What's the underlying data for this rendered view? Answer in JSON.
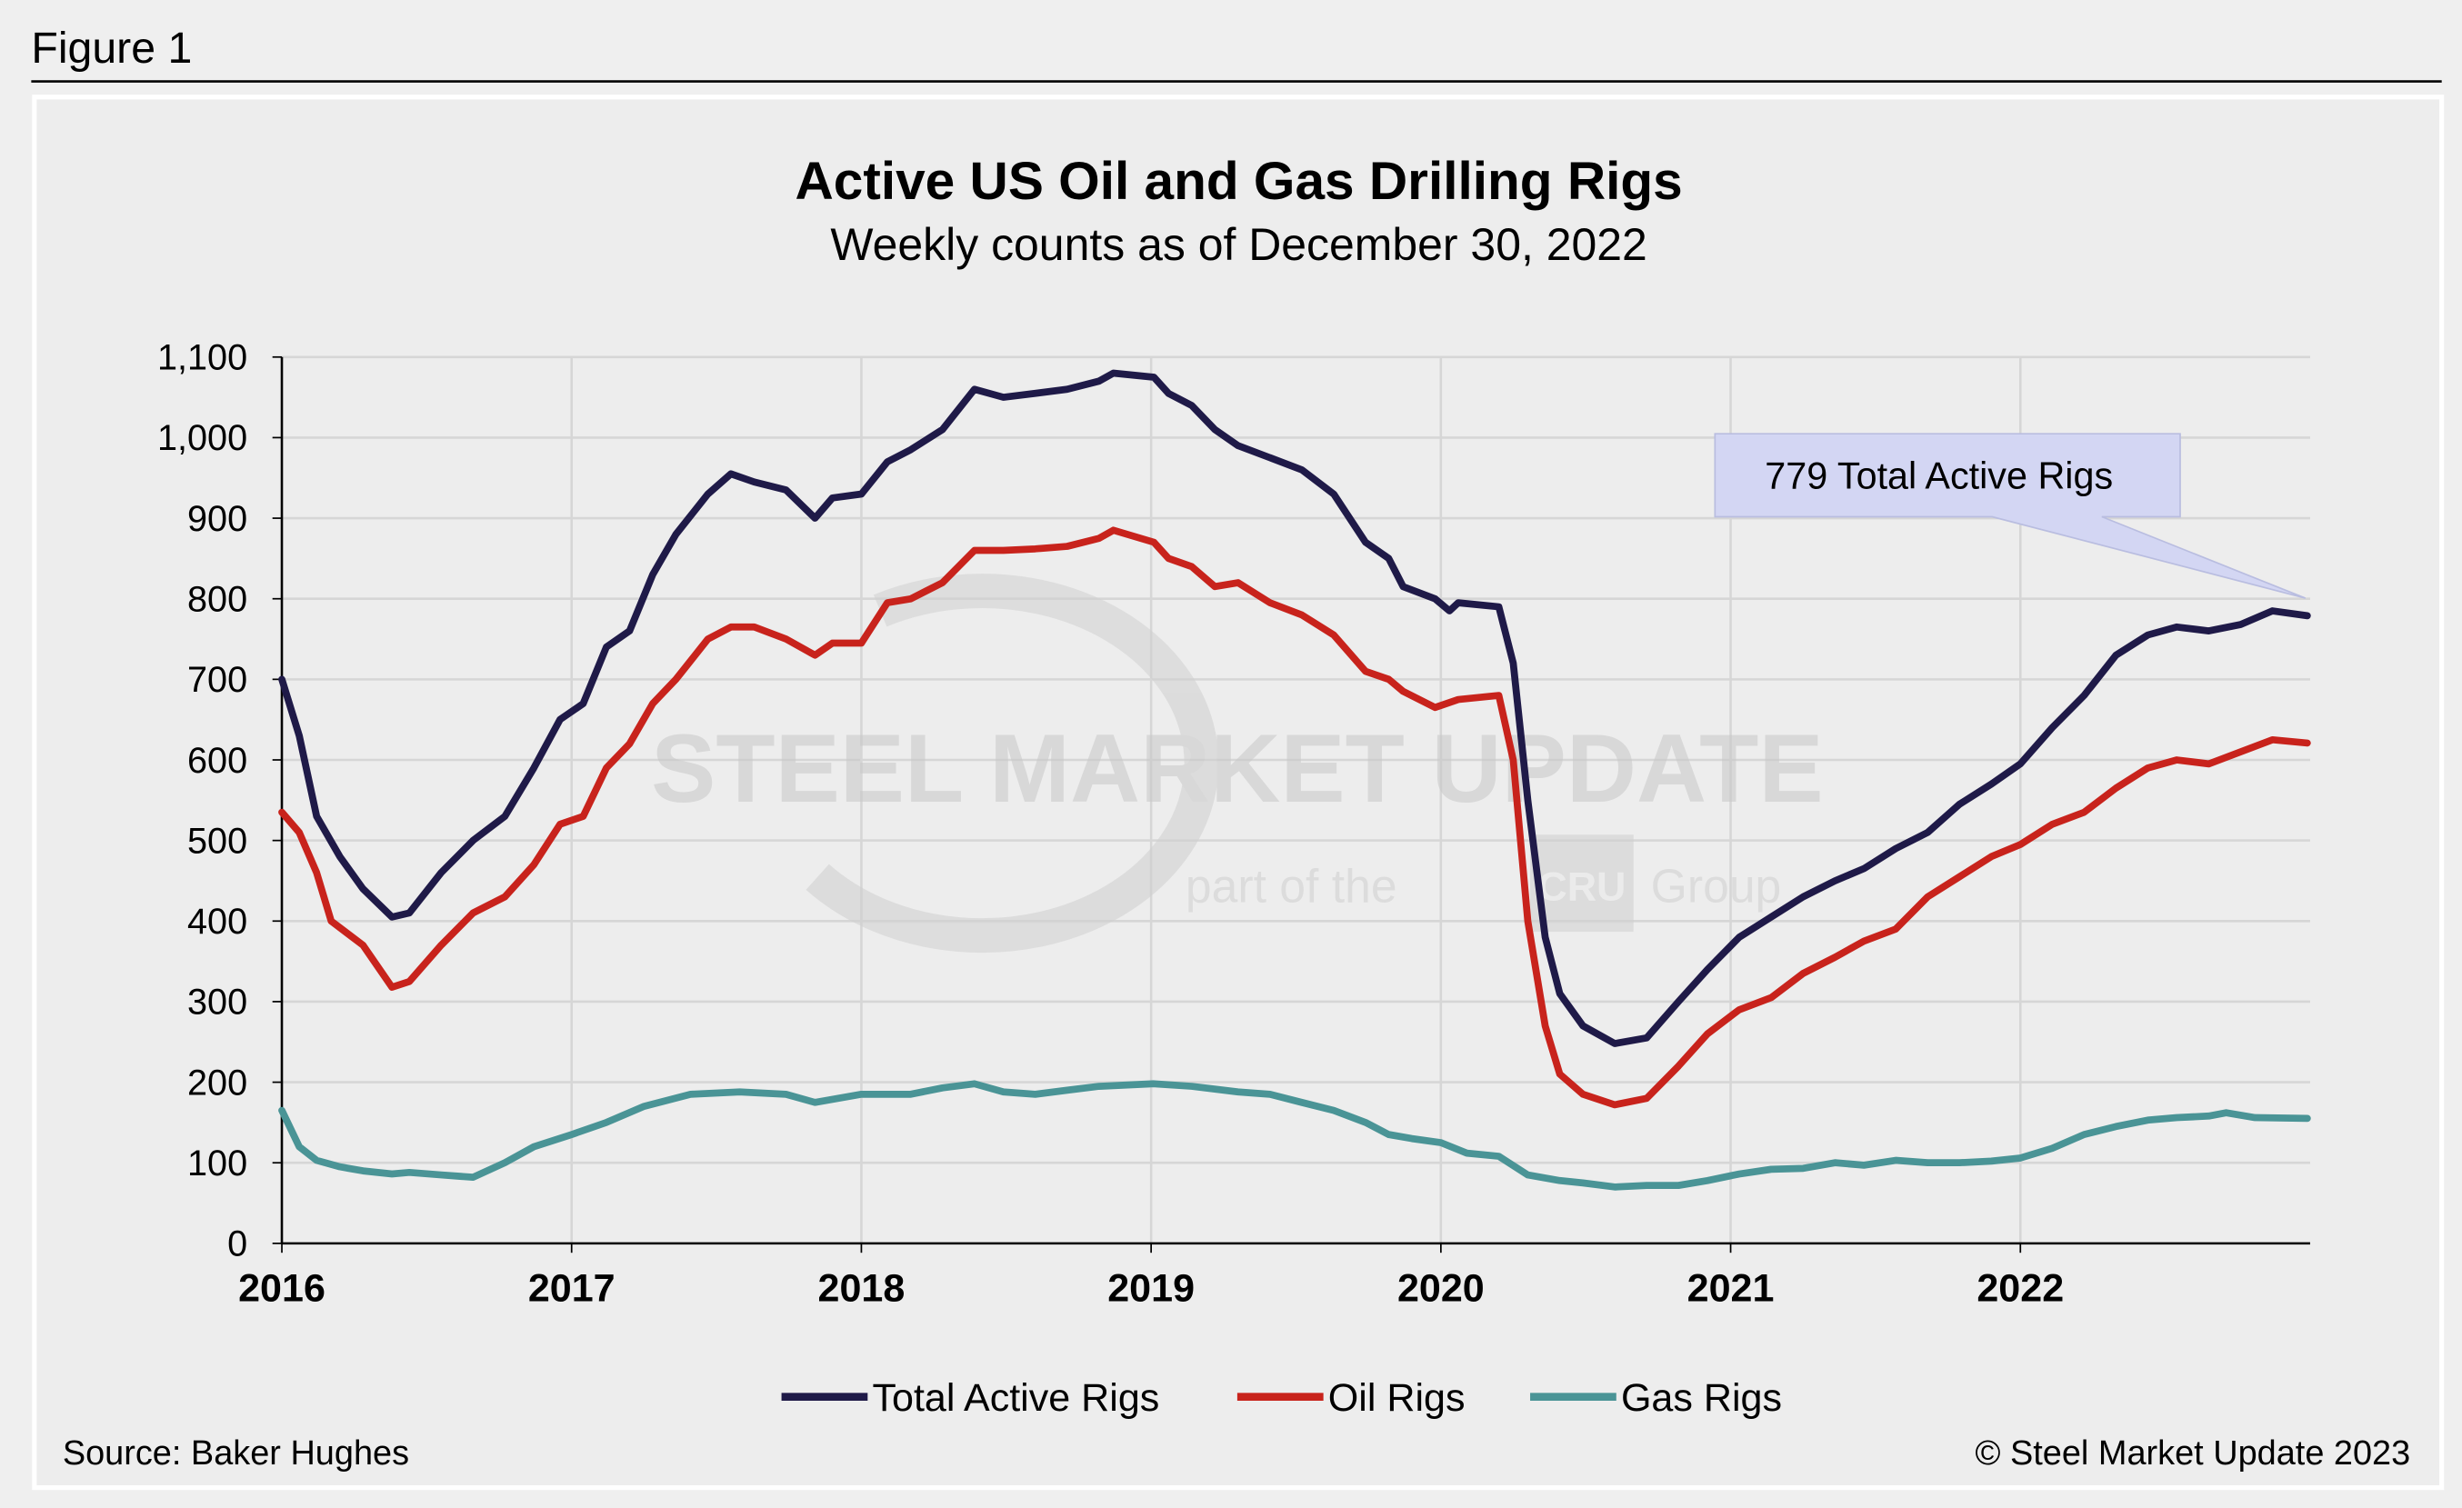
{
  "figure_label": "Figure 1",
  "source": "Source: Baker Hughes",
  "copyright": "© Steel Market Update 2023",
  "watermark": {
    "main": "STEEL MARKET UPDATE",
    "sub_prefix": "part of the",
    "sub_brand": "CRU",
    "sub_suffix": "Group"
  },
  "chart_data": {
    "type": "line",
    "title": "Active US Oil and Gas Drilling Rigs",
    "subtitle": "Weekly counts as of December 30, 2022",
    "xlabel": "",
    "ylabel": "",
    "xlim": [
      2016,
      2023
    ],
    "ylim": [
      0,
      1100
    ],
    "x_ticks": [
      "2016",
      "2017",
      "2018",
      "2019",
      "2020",
      "2021",
      "2022"
    ],
    "y_ticks": [
      "0",
      "100",
      "200",
      "300",
      "400",
      "500",
      "600",
      "700",
      "800",
      "900",
      "1,000",
      "1,100"
    ],
    "grid": true,
    "legend": "bottom",
    "annotation": "779 Total Active Rigs",
    "colors": {
      "total": "#1f1a48",
      "oil": "#c8231c",
      "gas": "#4a9496",
      "callout": "#d3d6f3"
    },
    "series": [
      {
        "name": "Total Active Rigs",
        "key": "total",
        "points": [
          [
            2016.0,
            700
          ],
          [
            2016.06,
            630
          ],
          [
            2016.12,
            530
          ],
          [
            2016.2,
            480
          ],
          [
            2016.28,
            440
          ],
          [
            2016.38,
            405
          ],
          [
            2016.44,
            410
          ],
          [
            2016.55,
            460
          ],
          [
            2016.66,
            500
          ],
          [
            2016.77,
            530
          ],
          [
            2016.87,
            590
          ],
          [
            2016.96,
            650
          ],
          [
            2017.04,
            670
          ],
          [
            2017.12,
            740
          ],
          [
            2017.2,
            760
          ],
          [
            2017.28,
            830
          ],
          [
            2017.36,
            880
          ],
          [
            2017.47,
            930
          ],
          [
            2017.55,
            955
          ],
          [
            2017.63,
            945
          ],
          [
            2017.74,
            935
          ],
          [
            2017.84,
            900
          ],
          [
            2017.9,
            925
          ],
          [
            2018.0,
            930
          ],
          [
            2018.09,
            970
          ],
          [
            2018.17,
            985
          ],
          [
            2018.28,
            1010
          ],
          [
            2018.39,
            1060
          ],
          [
            2018.49,
            1050
          ],
          [
            2018.6,
            1055
          ],
          [
            2018.71,
            1060
          ],
          [
            2018.82,
            1070
          ],
          [
            2018.87,
            1080
          ],
          [
            2019.01,
            1075
          ],
          [
            2019.06,
            1055
          ],
          [
            2019.14,
            1040
          ],
          [
            2019.22,
            1010
          ],
          [
            2019.3,
            990
          ],
          [
            2019.41,
            975
          ],
          [
            2019.52,
            960
          ],
          [
            2019.63,
            930
          ],
          [
            2019.74,
            870
          ],
          [
            2019.82,
            850
          ],
          [
            2019.87,
            815
          ],
          [
            2019.98,
            800
          ],
          [
            2020.03,
            785
          ],
          [
            2020.06,
            795
          ],
          [
            2020.2,
            790
          ],
          [
            2020.25,
            720
          ],
          [
            2020.3,
            550
          ],
          [
            2020.36,
            380
          ],
          [
            2020.41,
            310
          ],
          [
            2020.49,
            270
          ],
          [
            2020.6,
            248
          ],
          [
            2020.71,
            255
          ],
          [
            2020.82,
            300
          ],
          [
            2020.92,
            340
          ],
          [
            2021.03,
            380
          ],
          [
            2021.14,
            405
          ],
          [
            2021.25,
            430
          ],
          [
            2021.36,
            450
          ],
          [
            2021.46,
            465
          ],
          [
            2021.57,
            490
          ],
          [
            2021.68,
            510
          ],
          [
            2021.79,
            545
          ],
          [
            2021.9,
            570
          ],
          [
            2022.0,
            595
          ],
          [
            2022.11,
            640
          ],
          [
            2022.22,
            680
          ],
          [
            2022.33,
            730
          ],
          [
            2022.44,
            755
          ],
          [
            2022.54,
            765
          ],
          [
            2022.65,
            760
          ],
          [
            2022.76,
            768
          ],
          [
            2022.87,
            785
          ],
          [
            2022.99,
            779
          ]
        ]
      },
      {
        "name": "Oil Rigs",
        "key": "oil",
        "points": [
          [
            2016.0,
            535
          ],
          [
            2016.06,
            510
          ],
          [
            2016.12,
            460
          ],
          [
            2016.17,
            400
          ],
          [
            2016.28,
            370
          ],
          [
            2016.38,
            318
          ],
          [
            2016.44,
            325
          ],
          [
            2016.55,
            370
          ],
          [
            2016.66,
            410
          ],
          [
            2016.77,
            430
          ],
          [
            2016.87,
            470
          ],
          [
            2016.96,
            520
          ],
          [
            2017.04,
            530
          ],
          [
            2017.12,
            590
          ],
          [
            2017.2,
            620
          ],
          [
            2017.28,
            670
          ],
          [
            2017.36,
            700
          ],
          [
            2017.47,
            750
          ],
          [
            2017.55,
            765
          ],
          [
            2017.63,
            765
          ],
          [
            2017.74,
            750
          ],
          [
            2017.84,
            730
          ],
          [
            2017.9,
            745
          ],
          [
            2018.0,
            745
          ],
          [
            2018.09,
            795
          ],
          [
            2018.17,
            800
          ],
          [
            2018.28,
            820
          ],
          [
            2018.39,
            860
          ],
          [
            2018.49,
            860
          ],
          [
            2018.6,
            862
          ],
          [
            2018.71,
            865
          ],
          [
            2018.82,
            875
          ],
          [
            2018.87,
            885
          ],
          [
            2019.01,
            870
          ],
          [
            2019.06,
            850
          ],
          [
            2019.14,
            840
          ],
          [
            2019.22,
            815
          ],
          [
            2019.3,
            820
          ],
          [
            2019.41,
            795
          ],
          [
            2019.52,
            780
          ],
          [
            2019.63,
            755
          ],
          [
            2019.74,
            710
          ],
          [
            2019.82,
            700
          ],
          [
            2019.87,
            685
          ],
          [
            2019.98,
            665
          ],
          [
            2020.06,
            675
          ],
          [
            2020.2,
            680
          ],
          [
            2020.25,
            600
          ],
          [
            2020.3,
            400
          ],
          [
            2020.36,
            270
          ],
          [
            2020.41,
            210
          ],
          [
            2020.49,
            185
          ],
          [
            2020.6,
            172
          ],
          [
            2020.71,
            180
          ],
          [
            2020.82,
            220
          ],
          [
            2020.92,
            260
          ],
          [
            2021.03,
            290
          ],
          [
            2021.14,
            305
          ],
          [
            2021.25,
            335
          ],
          [
            2021.36,
            355
          ],
          [
            2021.46,
            375
          ],
          [
            2021.57,
            390
          ],
          [
            2021.68,
            430
          ],
          [
            2021.79,
            455
          ],
          [
            2021.9,
            480
          ],
          [
            2022.0,
            495
          ],
          [
            2022.11,
            520
          ],
          [
            2022.22,
            535
          ],
          [
            2022.33,
            565
          ],
          [
            2022.44,
            590
          ],
          [
            2022.54,
            600
          ],
          [
            2022.65,
            595
          ],
          [
            2022.76,
            610
          ],
          [
            2022.87,
            625
          ],
          [
            2022.99,
            621
          ]
        ]
      },
      {
        "name": "Gas Rigs",
        "key": "gas",
        "points": [
          [
            2016.0,
            165
          ],
          [
            2016.06,
            120
          ],
          [
            2016.12,
            103
          ],
          [
            2016.2,
            95
          ],
          [
            2016.28,
            90
          ],
          [
            2016.38,
            86
          ],
          [
            2016.44,
            88
          ],
          [
            2016.55,
            85
          ],
          [
            2016.66,
            82
          ],
          [
            2016.77,
            100
          ],
          [
            2016.87,
            120
          ],
          [
            2017.0,
            135
          ],
          [
            2017.12,
            150
          ],
          [
            2017.25,
            170
          ],
          [
            2017.41,
            185
          ],
          [
            2017.58,
            188
          ],
          [
            2017.74,
            185
          ],
          [
            2017.84,
            175
          ],
          [
            2018.0,
            185
          ],
          [
            2018.17,
            185
          ],
          [
            2018.28,
            193
          ],
          [
            2018.39,
            198
          ],
          [
            2018.49,
            188
          ],
          [
            2018.6,
            185
          ],
          [
            2018.71,
            190
          ],
          [
            2018.82,
            195
          ],
          [
            2019.01,
            198
          ],
          [
            2019.14,
            195
          ],
          [
            2019.3,
            188
          ],
          [
            2019.41,
            185
          ],
          [
            2019.52,
            175
          ],
          [
            2019.63,
            165
          ],
          [
            2019.74,
            150
          ],
          [
            2019.82,
            135
          ],
          [
            2019.9,
            130
          ],
          [
            2020.0,
            125
          ],
          [
            2020.09,
            112
          ],
          [
            2020.2,
            108
          ],
          [
            2020.3,
            85
          ],
          [
            2020.41,
            78
          ],
          [
            2020.49,
            75
          ],
          [
            2020.6,
            70
          ],
          [
            2020.71,
            72
          ],
          [
            2020.82,
            72
          ],
          [
            2020.92,
            78
          ],
          [
            2021.03,
            86
          ],
          [
            2021.14,
            92
          ],
          [
            2021.25,
            93
          ],
          [
            2021.36,
            100
          ],
          [
            2021.46,
            97
          ],
          [
            2021.57,
            103
          ],
          [
            2021.68,
            100
          ],
          [
            2021.79,
            100
          ],
          [
            2021.9,
            102
          ],
          [
            2022.0,
            106
          ],
          [
            2022.11,
            118
          ],
          [
            2022.22,
            135
          ],
          [
            2022.33,
            145
          ],
          [
            2022.44,
            153
          ],
          [
            2022.54,
            156
          ],
          [
            2022.65,
            158
          ],
          [
            2022.71,
            162
          ],
          [
            2022.81,
            156
          ],
          [
            2022.99,
            155
          ]
        ]
      }
    ]
  }
}
